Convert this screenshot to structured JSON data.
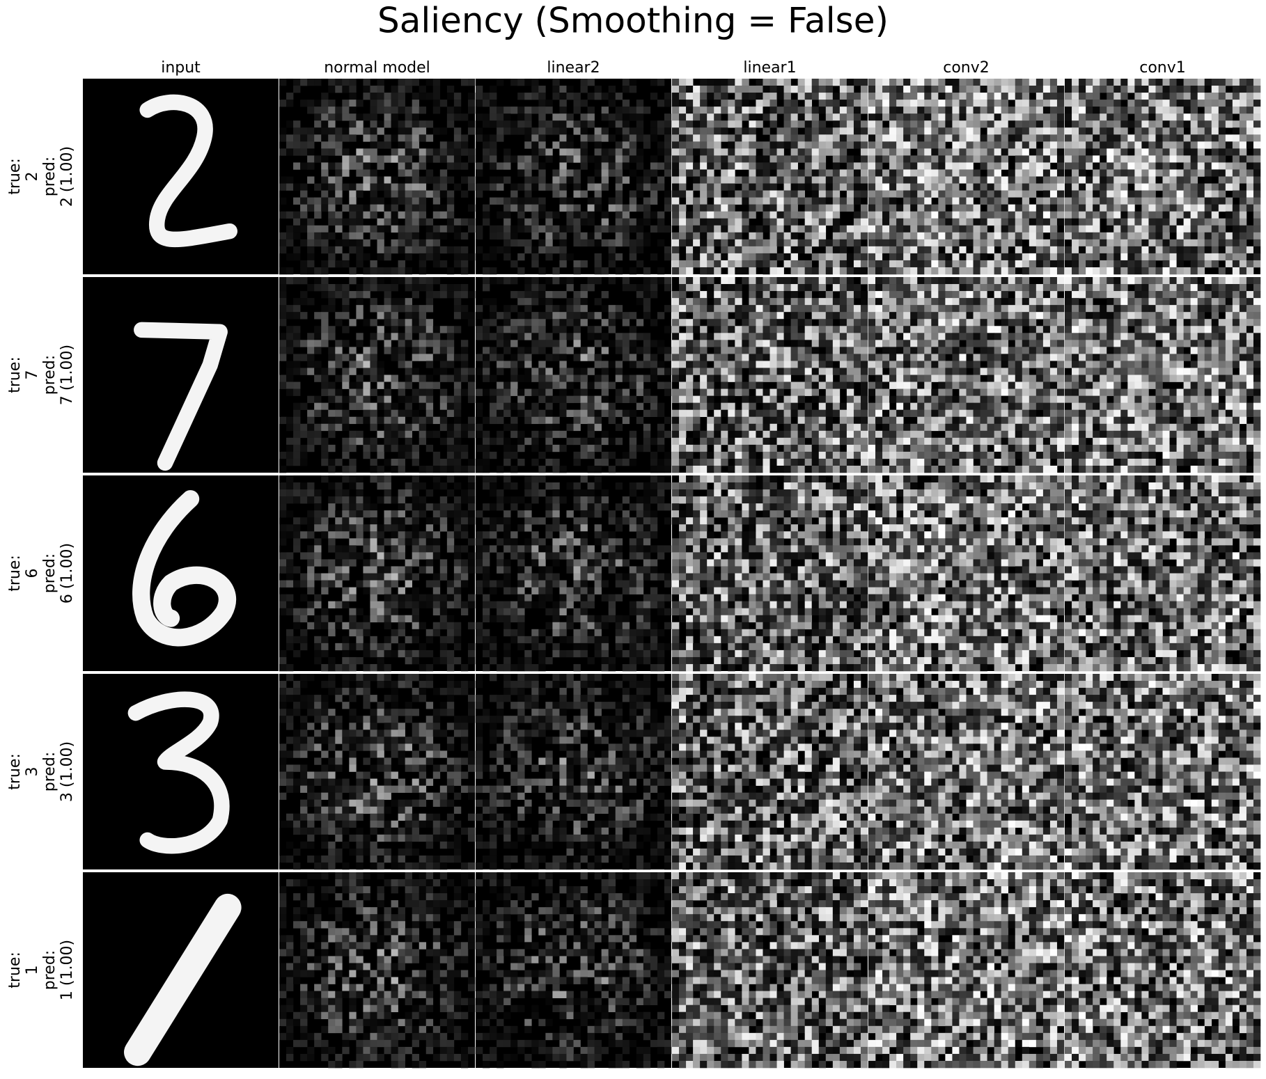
{
  "title": "Saliency (Smoothing = False)",
  "columns": [
    "input",
    "normal model",
    "linear2",
    "linear1",
    "conv2",
    "conv1"
  ],
  "rows": [
    {
      "lines": [
        "true:",
        "2",
        "pred:",
        "2 (1.00)"
      ]
    },
    {
      "lines": [
        "true:",
        "7",
        "pred:",
        "7 (1.00)"
      ]
    },
    {
      "lines": [
        "true:",
        "6",
        "pred:",
        "6 (1.00)"
      ]
    },
    {
      "lines": [
        "true:",
        "3",
        "pred:",
        "3 (1.00)"
      ]
    },
    {
      "lines": [
        "true:",
        "1",
        "pred:",
        "1 (1.00)"
      ]
    }
  ]
}
